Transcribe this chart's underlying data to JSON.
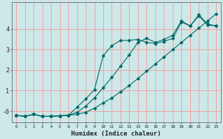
{
  "title": "",
  "xlabel": "Humidex (Indice chaleur)",
  "background_color": "#cce8e8",
  "grid_color": "#f5a0a0",
  "line_color": "#006666",
  "xlim": [
    -0.5,
    23.5
  ],
  "ylim": [
    -0.55,
    5.3
  ],
  "yticks": [
    0,
    1,
    2,
    3,
    4
  ],
  "ytick_labels": [
    "-0",
    "1",
    "2",
    "3",
    "4"
  ],
  "xticks": [
    0,
    1,
    2,
    3,
    4,
    5,
    6,
    7,
    8,
    9,
    10,
    11,
    12,
    13,
    14,
    15,
    16,
    17,
    18,
    19,
    20,
    21,
    22,
    23
  ],
  "line1_x": [
    0,
    1,
    2,
    3,
    4,
    5,
    6,
    7,
    8,
    9,
    10,
    11,
    12,
    13,
    14,
    15,
    16,
    17,
    18,
    19,
    20,
    21,
    22,
    23
  ],
  "line1_y": [
    -0.2,
    -0.25,
    -0.15,
    -0.25,
    -0.25,
    -0.22,
    -0.2,
    -0.15,
    -0.05,
    0.15,
    0.4,
    0.65,
    0.95,
    1.25,
    1.6,
    1.95,
    2.3,
    2.65,
    3.0,
    3.35,
    3.7,
    4.05,
    4.4,
    4.75
  ],
  "line2_x": [
    0,
    1,
    2,
    3,
    4,
    5,
    6,
    7,
    8,
    9,
    10,
    11,
    12,
    13,
    14,
    15,
    16,
    17,
    18,
    19,
    20,
    21,
    22,
    23
  ],
  "line2_y": [
    -0.2,
    -0.25,
    -0.15,
    -0.25,
    -0.25,
    -0.22,
    -0.2,
    0.2,
    0.6,
    1.05,
    2.7,
    3.2,
    3.45,
    3.45,
    3.5,
    3.35,
    3.3,
    3.4,
    3.55,
    4.35,
    4.15,
    4.65,
    4.2,
    4.15
  ],
  "line3_x": [
    0,
    1,
    2,
    3,
    4,
    5,
    6,
    7,
    8,
    9,
    10,
    11,
    12,
    13,
    14,
    15,
    16,
    17,
    18,
    19,
    20,
    21,
    22,
    23
  ],
  "line3_y": [
    -0.2,
    -0.25,
    -0.15,
    -0.25,
    -0.25,
    -0.22,
    -0.2,
    -0.05,
    0.25,
    0.65,
    1.15,
    1.65,
    2.2,
    2.75,
    3.35,
    3.55,
    3.35,
    3.5,
    3.7,
    4.4,
    4.15,
    4.7,
    4.25,
    4.15
  ]
}
